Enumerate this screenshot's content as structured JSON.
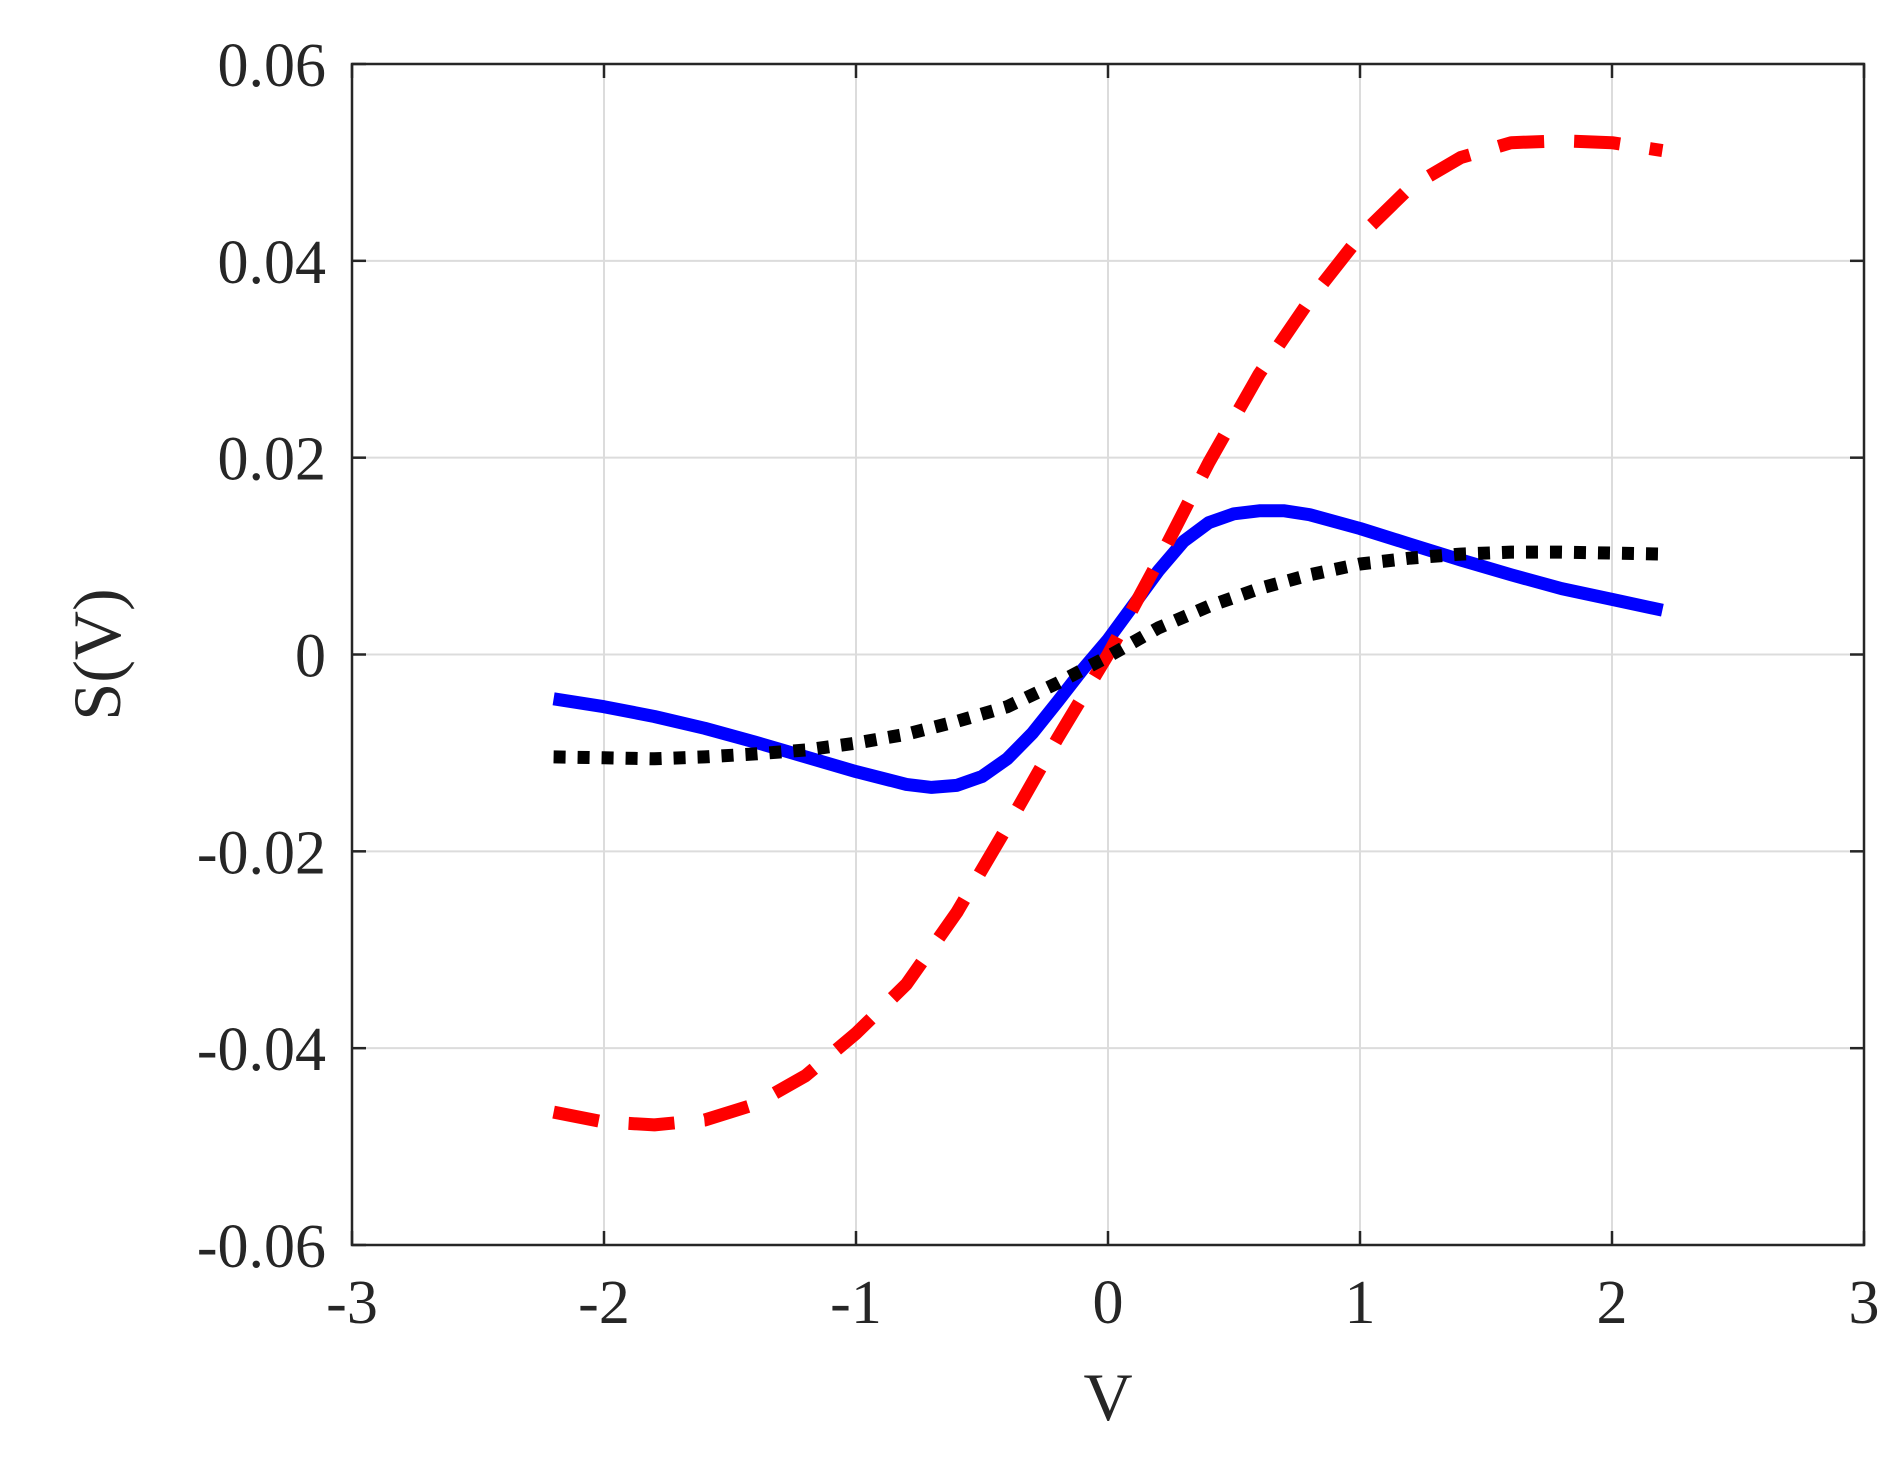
{
  "chart_data": {
    "type": "line",
    "title": "",
    "xlabel": "V",
    "ylabel": "S(V)",
    "xlim": [
      -3,
      3
    ],
    "ylim": [
      -0.06,
      0.06
    ],
    "x_ticks": [
      -3,
      -2,
      -1,
      0,
      1,
      2,
      3
    ],
    "x_tick_labels": [
      "-3",
      "-2",
      "-1",
      "0",
      "1",
      "2",
      "3"
    ],
    "y_ticks": [
      -0.06,
      -0.04,
      -0.02,
      0,
      0.02,
      0.04,
      0.06
    ],
    "y_tick_labels": [
      "-0.06",
      "-0.04",
      "-0.02",
      "0",
      "0.02",
      "0.04",
      "0.06"
    ],
    "grid": true,
    "legend": "none",
    "series": [
      {
        "color": "#0000ff",
        "style": "solid",
        "x": [
          -2.2,
          -2.0,
          -1.8,
          -1.6,
          -1.4,
          -1.2,
          -1.0,
          -0.8,
          -0.7,
          -0.6,
          -0.5,
          -0.4,
          -0.3,
          -0.2,
          -0.1,
          0.0,
          0.1,
          0.2,
          0.3,
          0.4,
          0.5,
          0.6,
          0.7,
          0.8,
          1.0,
          1.2,
          1.4,
          1.6,
          1.8,
          2.0,
          2.2
        ],
        "y": [
          -0.0045,
          -0.0053,
          -0.0063,
          -0.0075,
          -0.0089,
          -0.0104,
          -0.0119,
          -0.0132,
          -0.0135,
          -0.0133,
          -0.0124,
          -0.0106,
          -0.008,
          -0.0048,
          -0.0015,
          0.0015,
          0.005,
          0.0085,
          0.0115,
          0.0134,
          0.0143,
          0.0146,
          0.0146,
          0.0142,
          0.0128,
          0.0112,
          0.0096,
          0.0081,
          0.0067,
          0.0056,
          0.0045
        ]
      },
      {
        "color": "#ff0000",
        "style": "dashed",
        "x": [
          -2.2,
          -2.0,
          -1.8,
          -1.6,
          -1.4,
          -1.2,
          -1.0,
          -0.8,
          -0.6,
          -0.4,
          -0.2,
          0.0,
          0.2,
          0.4,
          0.6,
          0.8,
          1.0,
          1.2,
          1.4,
          1.6,
          1.8,
          2.0,
          2.2
        ],
        "y": [
          -0.0465,
          -0.0475,
          -0.0478,
          -0.0473,
          -0.0457,
          -0.0428,
          -0.0385,
          -0.0335,
          -0.0262,
          -0.0175,
          -0.0085,
          0.0,
          0.0095,
          0.0195,
          0.0285,
          0.036,
          0.0425,
          0.0475,
          0.0505,
          0.052,
          0.0522,
          0.052,
          0.0512
        ]
      },
      {
        "color": "#000000",
        "style": "dotted",
        "x": [
          -2.2,
          -2.0,
          -1.8,
          -1.6,
          -1.4,
          -1.2,
          -1.0,
          -0.8,
          -0.6,
          -0.4,
          -0.2,
          0.0,
          0.2,
          0.4,
          0.6,
          0.8,
          1.0,
          1.2,
          1.4,
          1.6,
          1.8,
          2.0,
          2.2
        ],
        "y": [
          -0.0104,
          -0.0105,
          -0.0106,
          -0.0104,
          -0.0101,
          -0.0097,
          -0.009,
          -0.0081,
          -0.0068,
          -0.0053,
          -0.0029,
          -0.0002,
          0.0027,
          0.0049,
          0.0067,
          0.0081,
          0.0092,
          0.0098,
          0.0102,
          0.0104,
          0.0104,
          0.0103,
          0.0102
        ]
      }
    ]
  }
}
